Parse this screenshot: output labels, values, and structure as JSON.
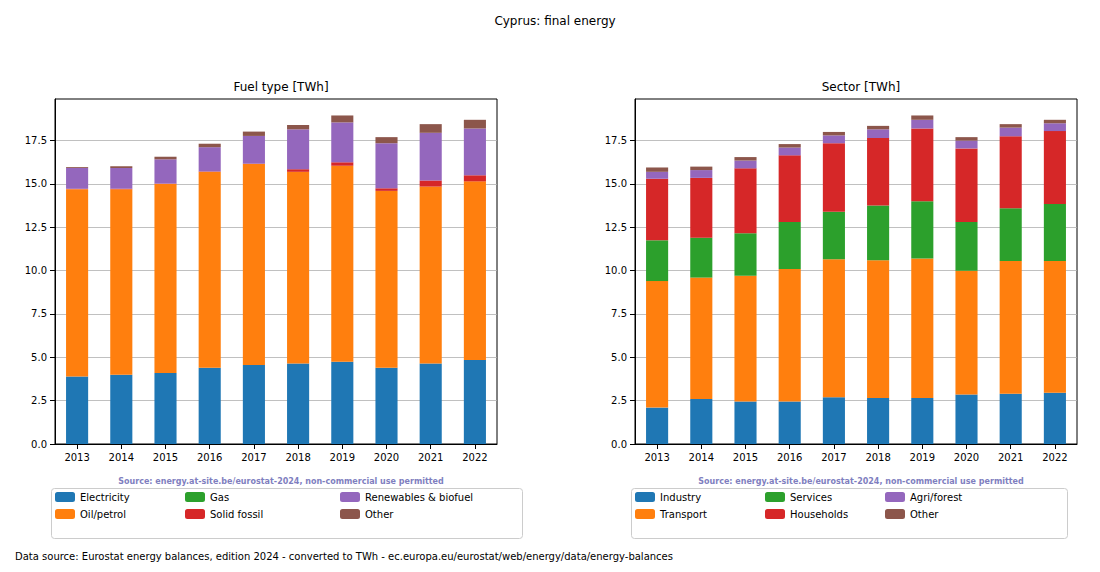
{
  "title": "Cyprus: final energy",
  "footer": "Data source: Eurostat energy balances, edition 2024 - converted to TWh - ec.europa.eu/eurostat/web/energy/data/energy-balances",
  "chart_data": [
    {
      "type": "bar",
      "title": "Fuel type [TWh]",
      "stacked": true,
      "grid": true,
      "legend": "bottom",
      "source": "Source: energy.at-site.be/eurostat-2024, non-commercial use permitted",
      "categories": [
        "2013",
        "2014",
        "2015",
        "2016",
        "2017",
        "2018",
        "2019",
        "2020",
        "2021",
        "2022"
      ],
      "ylim": [
        0,
        19.9
      ],
      "yticks": [
        {
          "value": 0,
          "label": "0.0"
        },
        2.5,
        {
          "value": 5,
          "label": "5.0"
        },
        7.5,
        {
          "value": 10,
          "label": "10.0"
        },
        12.5,
        {
          "value": 15,
          "label": "15.0"
        },
        17.5
      ],
      "series": [
        {
          "name": "Electricity",
          "color": "#1f77b4",
          "values": [
            3.9,
            4.0,
            4.1,
            4.4,
            4.55,
            4.65,
            4.75,
            4.4,
            4.65,
            4.85
          ]
        },
        {
          "name": "Oil/petrol",
          "color": "#ff7f0e",
          "values": [
            10.8,
            10.7,
            10.9,
            11.3,
            11.6,
            11.05,
            11.3,
            10.2,
            10.2,
            10.3
          ]
        },
        {
          "name": "Gas",
          "color": "#2ca02c",
          "values": [
            0,
            0,
            0,
            0,
            0,
            0,
            0,
            0,
            0,
            0
          ]
        },
        {
          "name": "Solid fossil",
          "color": "#d62728",
          "values": [
            0.02,
            0.02,
            0.02,
            0.02,
            0.02,
            0.15,
            0.2,
            0.15,
            0.35,
            0.35
          ]
        },
        {
          "name": "Renewables & biofuel",
          "color": "#9467bd",
          "values": [
            1.2,
            1.2,
            1.4,
            1.4,
            1.6,
            2.3,
            2.3,
            2.6,
            2.75,
            2.7
          ]
        },
        {
          "name": "Other",
          "color": "#8c564b",
          "values": [
            0.05,
            0.1,
            0.15,
            0.2,
            0.25,
            0.25,
            0.4,
            0.35,
            0.5,
            0.5
          ]
        }
      ]
    },
    {
      "type": "bar",
      "title": "Sector [TWh]",
      "stacked": true,
      "grid": true,
      "legend": "bottom",
      "source": "Source: energy.at-site.be/eurostat-2024, non-commercial use permitted",
      "categories": [
        "2013",
        "2014",
        "2015",
        "2016",
        "2017",
        "2018",
        "2019",
        "2020",
        "2021",
        "2022"
      ],
      "ylim": [
        0,
        19.9
      ],
      "yticks": [
        {
          "value": 0,
          "label": "0.0"
        },
        2.5,
        {
          "value": 5,
          "label": "5.0"
        },
        7.5,
        {
          "value": 10,
          "label": "10.0"
        },
        12.5,
        {
          "value": 15,
          "label": "15.0"
        },
        17.5
      ],
      "series": [
        {
          "name": "Industry",
          "color": "#1f77b4",
          "values": [
            2.1,
            2.6,
            2.45,
            2.45,
            2.7,
            2.65,
            2.65,
            2.85,
            2.9,
            2.95
          ]
        },
        {
          "name": "Transport",
          "color": "#ff7f0e",
          "values": [
            7.3,
            7.0,
            7.25,
            7.65,
            7.95,
            7.95,
            8.05,
            7.15,
            7.65,
            7.6
          ]
        },
        {
          "name": "Services",
          "color": "#2ca02c",
          "values": [
            2.35,
            2.3,
            2.45,
            2.7,
            2.75,
            3.15,
            3.3,
            2.8,
            3.05,
            3.3
          ]
        },
        {
          "name": "Households",
          "color": "#d62728",
          "values": [
            3.55,
            3.45,
            3.75,
            3.85,
            3.95,
            3.9,
            4.2,
            4.25,
            4.15,
            4.2
          ]
        },
        {
          "name": "Agri/forest",
          "color": "#9467bd",
          "values": [
            0.4,
            0.45,
            0.45,
            0.45,
            0.45,
            0.5,
            0.5,
            0.45,
            0.5,
            0.45
          ]
        },
        {
          "name": "Other",
          "color": "#8c564b",
          "values": [
            0.25,
            0.2,
            0.2,
            0.2,
            0.2,
            0.2,
            0.25,
            0.2,
            0.2,
            0.2
          ]
        }
      ]
    }
  ]
}
